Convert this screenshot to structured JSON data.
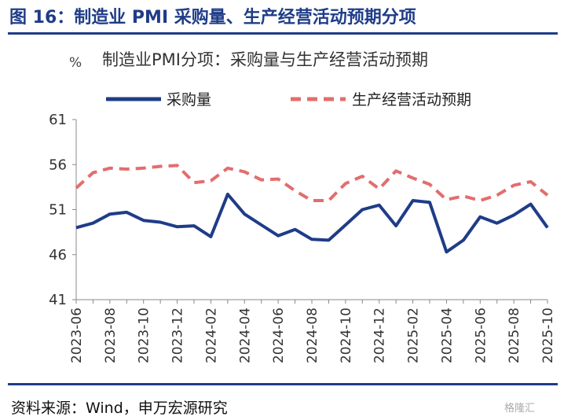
{
  "figure_title": "图 16：制造业 PMI 采购量、生产经营活动预期分项",
  "source": "资料来源：Wind，申万宏源研究",
  "watermark": "格隆汇",
  "chart_data": {
    "type": "line",
    "title": "制造业PMI分项：采购量与生产经营活动预期",
    "unit": "%",
    "ylim": [
      41,
      61
    ],
    "yticks": [
      41,
      46,
      51,
      56,
      61
    ],
    "x": [
      "2023-06",
      "2023-07",
      "2023-08",
      "2023-09",
      "2023-10",
      "2023-11",
      "2023-12",
      "2024-01",
      "2024-02",
      "2024-03",
      "2024-04",
      "2024-05",
      "2024-06",
      "2024-07",
      "2024-08",
      "2024-09",
      "2024-10",
      "2024-11",
      "2024-12",
      "2025-01",
      "2025-02",
      "2025-03",
      "2025-04",
      "2025-05",
      "2025-06",
      "2025-07",
      "2025-08",
      "2025-09",
      "2025-10"
    ],
    "xticks": [
      "2023-06",
      "2023-08",
      "2023-10",
      "2023-12",
      "2024-02",
      "2024-04",
      "2024-06",
      "2024-08",
      "2024-10",
      "2024-12",
      "2025-02",
      "2025-04",
      "2025-06",
      "2025-08",
      "2025-10"
    ],
    "series": [
      {
        "name": "采购量",
        "color": "#1f3c88",
        "style": "solid",
        "values": [
          49.0,
          49.5,
          50.5,
          50.7,
          49.8,
          49.6,
          49.1,
          49.2,
          48.0,
          52.7,
          50.5,
          49.3,
          48.1,
          48.8,
          47.7,
          47.6,
          49.3,
          51.0,
          51.5,
          49.2,
          52.0,
          51.8,
          46.3,
          47.6,
          50.2,
          49.5,
          50.4,
          51.6,
          49.0
        ]
      },
      {
        "name": "生产经营活动预期",
        "color": "#e36d6d",
        "style": "dashed",
        "values": [
          53.4,
          55.1,
          55.6,
          55.5,
          55.6,
          55.8,
          55.9,
          54.0,
          54.2,
          55.6,
          55.2,
          54.3,
          54.4,
          53.1,
          52.0,
          52.0,
          53.9,
          54.7,
          53.3,
          55.3,
          54.5,
          53.8,
          52.1,
          52.5,
          52.0,
          52.6,
          53.7,
          54.1,
          52.6
        ]
      }
    ],
    "legend_position": "top",
    "grid": false
  }
}
